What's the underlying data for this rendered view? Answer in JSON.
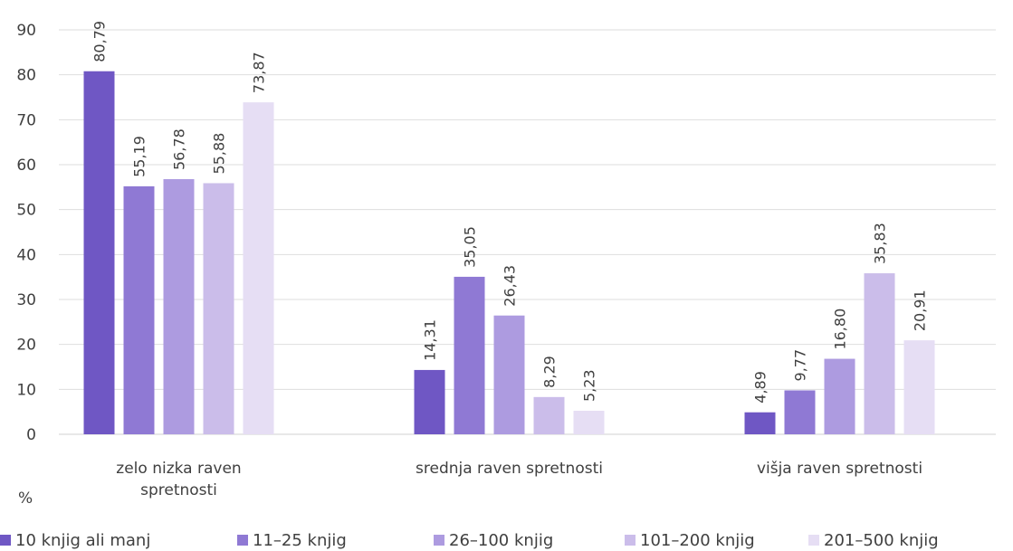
{
  "chart_data": {
    "type": "bar",
    "categories": [
      [
        "zelo nizka raven",
        "spretnosti"
      ],
      [
        "srednja raven spretnosti"
      ],
      [
        "višja raven spretnosti"
      ]
    ],
    "series": [
      {
        "name": "10 knjig ali manj",
        "values": [
          "80,79",
          "14,31",
          "4,89"
        ],
        "color": "#6f57c4"
      },
      {
        "name": "11–25 knjig",
        "values": [
          "55,19",
          "35,05",
          "9,77"
        ],
        "color": "#8f79d4"
      },
      {
        "name": "26–100 knjig",
        "values": [
          "56,78",
          "26,43",
          "16,80"
        ],
        "color": "#ad9be0"
      },
      {
        "name": "101–200 knjig",
        "values": [
          "55,88",
          "8,29",
          "35,83"
        ],
        "color": "#cbbdea"
      },
      {
        "name": "201–500 knjig",
        "values": [
          "73,87",
          "5,23",
          "20,91"
        ],
        "color": "#e6def4"
      }
    ],
    "y_ticks": [
      "0",
      "10",
      "20",
      "30",
      "40",
      "50",
      "60",
      "70",
      "80",
      "90"
    ],
    "ylim": [
      0,
      90
    ],
    "ylabel": "%",
    "grid": true,
    "legend_position": "bottom"
  }
}
